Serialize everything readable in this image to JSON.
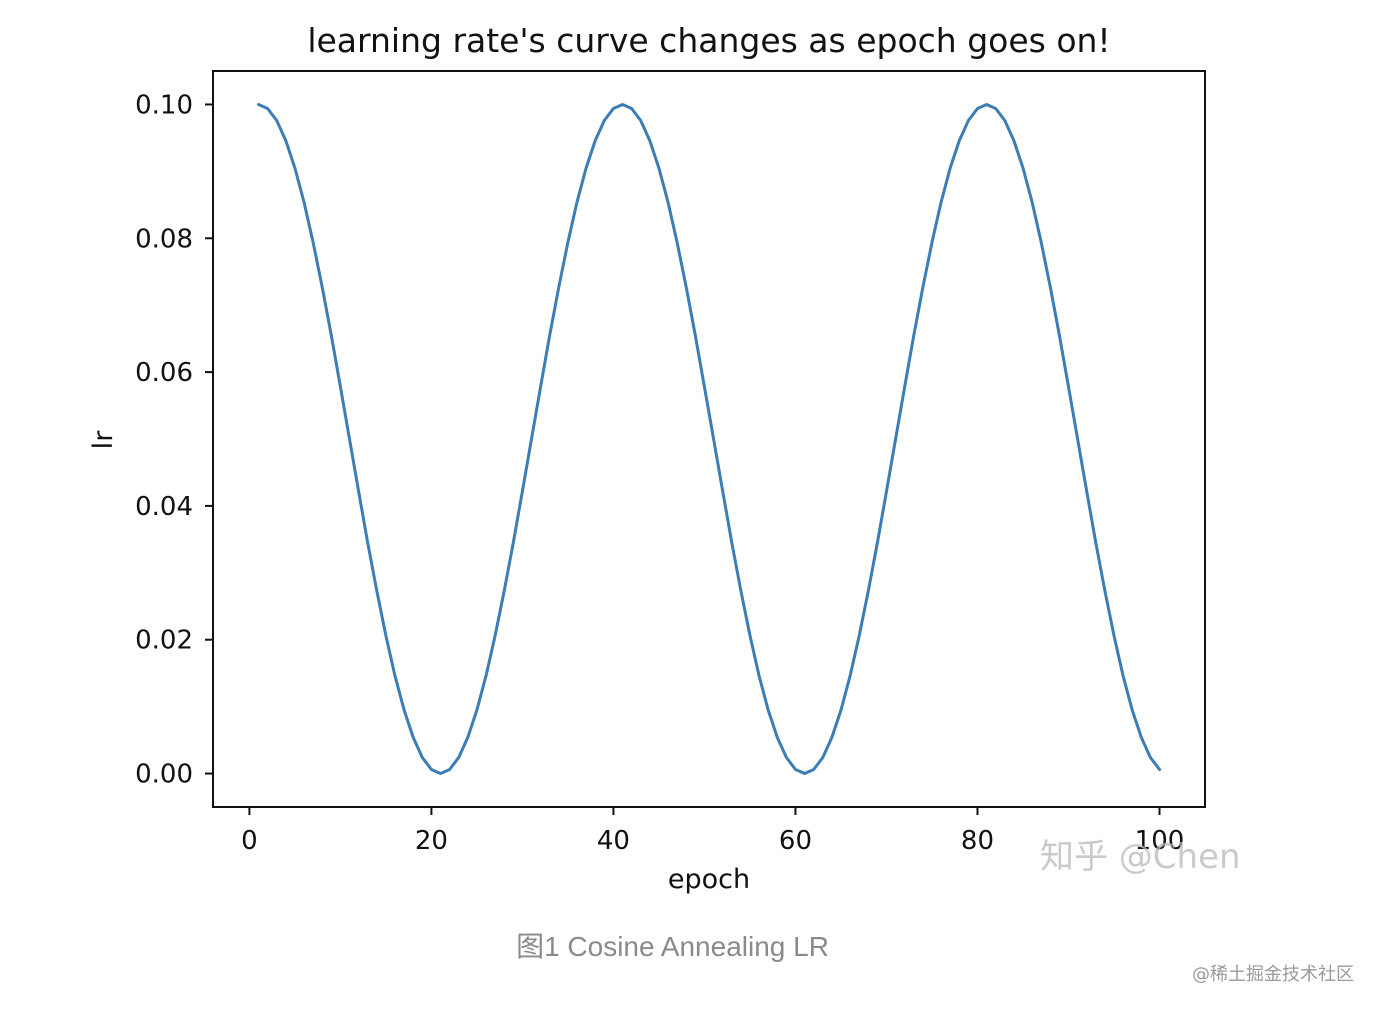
{
  "chart_data": {
    "type": "line",
    "title": "learning rate's curve changes as epoch goes on!",
    "xlabel": "epoch",
    "ylabel": "lr",
    "xlim": [
      -4,
      105
    ],
    "ylim": [
      -0.005,
      0.105
    ],
    "xticks": [
      0,
      20,
      40,
      60,
      80,
      100
    ],
    "xtick_labels": [
      "0",
      "20",
      "40",
      "60",
      "80",
      "100"
    ],
    "yticks": [
      0.0,
      0.02,
      0.04,
      0.06,
      0.08,
      0.1
    ],
    "ytick_labels": [
      "0.00",
      "0.02",
      "0.04",
      "0.06",
      "0.08",
      "0.10"
    ],
    "grid": false,
    "line_color": "#3b7db4",
    "series": [
      {
        "x": [
          1,
          2,
          3,
          4,
          5,
          6,
          7,
          8,
          9,
          10,
          11,
          12,
          13,
          14,
          15,
          16,
          17,
          18,
          19,
          20,
          21,
          22,
          23,
          24,
          25,
          26,
          27,
          28,
          29,
          30,
          31,
          32,
          33,
          34,
          35,
          36,
          37,
          38,
          39,
          40,
          41,
          42,
          43,
          44,
          45,
          46,
          47,
          48,
          49,
          50,
          51,
          52,
          53,
          54,
          55,
          56,
          57,
          58,
          59,
          60,
          61,
          62,
          63,
          64,
          65,
          66,
          67,
          68,
          69,
          70,
          71,
          72,
          73,
          74,
          75,
          76,
          77,
          78,
          79,
          80,
          81,
          82,
          83,
          84,
          85,
          86,
          87,
          88,
          89,
          90,
          91,
          92,
          93,
          94,
          95,
          96,
          97,
          98,
          99,
          100
        ],
        "values": [
          0.1,
          0.0994,
          0.0976,
          0.0946,
          0.0905,
          0.0854,
          0.0794,
          0.0727,
          0.0655,
          0.0578,
          0.05,
          0.0422,
          0.0345,
          0.0273,
          0.0206,
          0.0146,
          0.0095,
          0.0054,
          0.0024,
          0.0006,
          0.0,
          0.0006,
          0.0024,
          0.0054,
          0.0095,
          0.0146,
          0.0206,
          0.0273,
          0.0345,
          0.0422,
          0.05,
          0.0578,
          0.0655,
          0.0727,
          0.0794,
          0.0854,
          0.0905,
          0.0946,
          0.0976,
          0.0994,
          0.1,
          0.0994,
          0.0976,
          0.0946,
          0.0905,
          0.0854,
          0.0794,
          0.0727,
          0.0655,
          0.0578,
          0.05,
          0.0422,
          0.0345,
          0.0273,
          0.0206,
          0.0146,
          0.0095,
          0.0054,
          0.0024,
          0.0006,
          0.0,
          0.0006,
          0.0024,
          0.0054,
          0.0095,
          0.0146,
          0.0206,
          0.0273,
          0.0345,
          0.0422,
          0.05,
          0.0578,
          0.0655,
          0.0727,
          0.0794,
          0.0854,
          0.0905,
          0.0946,
          0.0976,
          0.0994,
          0.1,
          0.0994,
          0.0976,
          0.0946,
          0.0905,
          0.0854,
          0.0794,
          0.0727,
          0.0655,
          0.0578,
          0.05,
          0.0422,
          0.0345,
          0.0273,
          0.0206,
          0.0146,
          0.0095,
          0.0054,
          0.0024,
          0.0006
        ]
      }
    ]
  },
  "watermark": "知乎 @Chen",
  "caption": "图1 Cosine Annealing LR",
  "site_mark": "@稀土掘金技术社区"
}
